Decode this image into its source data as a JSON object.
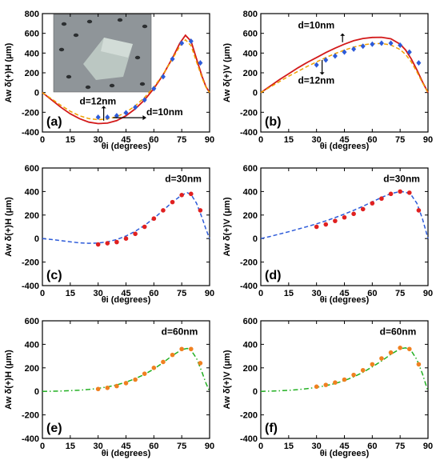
{
  "figure": {
    "xlabel": "θi (degrees)"
  },
  "inset_photo": {
    "colors": {
      "background": "#8f9599",
      "plate": "#c3d0c9",
      "hole": "#2c2f31"
    }
  },
  "chart_data": [
    {
      "panel": "(a)",
      "type": "line",
      "ylabel": "Aw δ(+)H (μm)",
      "xlim": [
        0,
        90
      ],
      "ylim": [
        -400,
        800
      ],
      "xticks": [
        0,
        15,
        30,
        45,
        60,
        75,
        90
      ],
      "yticks": [
        -400,
        -200,
        0,
        200,
        400,
        600,
        800
      ],
      "annotations": [
        "d=12nm",
        "d=10nm"
      ],
      "has_inset": true,
      "series": [
        {
          "style": "solid",
          "color": "#d31a1a",
          "x": [
            0,
            5,
            10,
            15,
            20,
            25,
            30,
            35,
            40,
            45,
            50,
            55,
            60,
            65,
            70,
            74,
            77,
            80,
            83,
            86,
            88,
            90
          ],
          "y": [
            0,
            -75,
            -150,
            -215,
            -265,
            -300,
            -315,
            -310,
            -285,
            -235,
            -165,
            -75,
            40,
            180,
            350,
            500,
            580,
            520,
            340,
            160,
            60,
            0
          ]
        },
        {
          "style": "dash",
          "color": "#f0a000",
          "x": [
            0,
            5,
            10,
            15,
            20,
            25,
            30,
            35,
            40,
            45,
            50,
            55,
            60,
            65,
            70,
            74,
            77,
            80,
            83,
            86,
            88,
            90
          ],
          "y": [
            0,
            -65,
            -130,
            -190,
            -235,
            -265,
            -275,
            -268,
            -245,
            -200,
            -135,
            -50,
            55,
            185,
            340,
            470,
            535,
            475,
            310,
            145,
            55,
            0
          ]
        },
        {
          "style": "markers",
          "color": "#2d5bd9",
          "x": [
            30,
            35,
            40,
            45,
            50,
            55,
            60,
            65,
            70,
            75,
            80,
            85
          ],
          "y": [
            -250,
            -250,
            -235,
            -205,
            -150,
            -75,
            40,
            160,
            340,
            500,
            520,
            300
          ]
        }
      ]
    },
    {
      "panel": "(b)",
      "type": "line",
      "ylabel": "Aw δ(+)V (μm)",
      "xlim": [
        0,
        90
      ],
      "ylim": [
        -400,
        800
      ],
      "xticks": [
        0,
        15,
        30,
        45,
        60,
        75,
        90
      ],
      "yticks": [
        -400,
        -200,
        0,
        200,
        400,
        600,
        800
      ],
      "annotations": [
        "d=10nm",
        "d=12nm"
      ],
      "series": [
        {
          "style": "solid",
          "color": "#d31a1a",
          "x": [
            0,
            5,
            10,
            15,
            20,
            25,
            30,
            35,
            40,
            45,
            50,
            55,
            60,
            65,
            70,
            75,
            78,
            81,
            84,
            87,
            90
          ],
          "y": [
            0,
            65,
            130,
            190,
            250,
            305,
            355,
            405,
            450,
            490,
            525,
            548,
            558,
            560,
            545,
            490,
            430,
            340,
            230,
            110,
            0
          ]
        },
        {
          "style": "dash",
          "color": "#f0a000",
          "x": [
            0,
            5,
            10,
            15,
            20,
            25,
            30,
            35,
            40,
            45,
            50,
            55,
            60,
            65,
            70,
            75,
            78,
            81,
            84,
            87,
            90
          ],
          "y": [
            0,
            55,
            110,
            165,
            215,
            265,
            310,
            355,
            395,
            430,
            460,
            483,
            495,
            497,
            482,
            435,
            385,
            310,
            210,
            100,
            0
          ]
        },
        {
          "style": "markers",
          "color": "#2d5bd9",
          "x": [
            30,
            35,
            40,
            45,
            50,
            55,
            60,
            65,
            70,
            75,
            80,
            85
          ],
          "y": [
            280,
            330,
            370,
            410,
            440,
            470,
            490,
            500,
            500,
            480,
            410,
            300
          ]
        }
      ]
    },
    {
      "panel": "(c)",
      "type": "line",
      "ylabel": "Aw δ(+)H (μm)",
      "xlim": [
        0,
        90
      ],
      "ylim": [
        -400,
        600
      ],
      "xticks": [
        0,
        15,
        30,
        45,
        60,
        75,
        90
      ],
      "yticks": [
        -400,
        -200,
        0,
        200,
        400,
        600
      ],
      "annotations": [
        "d=30nm"
      ],
      "series": [
        {
          "style": "dash",
          "color": "#2d5bd9",
          "x": [
            0,
            5,
            10,
            15,
            20,
            25,
            30,
            35,
            40,
            45,
            50,
            55,
            60,
            65,
            70,
            75,
            78,
            80,
            83,
            86,
            88,
            90
          ],
          "y": [
            0,
            -8,
            -18,
            -28,
            -36,
            -40,
            -38,
            -28,
            -8,
            22,
            62,
            112,
            172,
            240,
            310,
            370,
            390,
            375,
            300,
            175,
            80,
            0
          ]
        },
        {
          "style": "markers",
          "color": "#e02020",
          "x": [
            30,
            35,
            40,
            45,
            50,
            55,
            60,
            65,
            70,
            75,
            80,
            85
          ],
          "y": [
            -50,
            -40,
            -30,
            0,
            40,
            100,
            170,
            240,
            310,
            370,
            380,
            240
          ]
        }
      ]
    },
    {
      "panel": "(d)",
      "type": "line",
      "ylabel": "Aw δ(+)V (μm)",
      "xlim": [
        0,
        90
      ],
      "ylim": [
        -400,
        600
      ],
      "xticks": [
        0,
        15,
        30,
        45,
        60,
        75,
        90
      ],
      "yticks": [
        -400,
        -200,
        0,
        200,
        400,
        600
      ],
      "annotations": [
        "d=30nm"
      ],
      "series": [
        {
          "style": "dash",
          "color": "#2d5bd9",
          "x": [
            0,
            5,
            10,
            15,
            20,
            25,
            30,
            35,
            40,
            45,
            50,
            55,
            60,
            65,
            70,
            75,
            78,
            81,
            84,
            87,
            90
          ],
          "y": [
            0,
            18,
            38,
            58,
            80,
            102,
            125,
            150,
            178,
            208,
            240,
            275,
            312,
            350,
            382,
            400,
            395,
            370,
            300,
            170,
            0
          ]
        },
        {
          "style": "markers",
          "color": "#e02020",
          "x": [
            30,
            35,
            40,
            45,
            50,
            55,
            60,
            65,
            70,
            75,
            80,
            85
          ],
          "y": [
            100,
            120,
            150,
            180,
            210,
            250,
            300,
            340,
            380,
            400,
            390,
            240
          ]
        }
      ]
    },
    {
      "panel": "(e)",
      "type": "line",
      "ylabel": "Aw δ(+)H (μm)",
      "xlim": [
        0,
        90
      ],
      "ylim": [
        -400,
        600
      ],
      "xticks": [
        0,
        15,
        30,
        45,
        60,
        75,
        90
      ],
      "yticks": [
        -400,
        -200,
        0,
        200,
        400,
        600
      ],
      "annotations": [
        "d=60nm"
      ],
      "series": [
        {
          "style": "dashdot",
          "color": "#22b022",
          "x": [
            0,
            5,
            10,
            15,
            20,
            25,
            30,
            35,
            40,
            45,
            50,
            55,
            60,
            65,
            70,
            75,
            78,
            80,
            83,
            86,
            88,
            90
          ],
          "y": [
            0,
            1,
            3,
            6,
            10,
            16,
            25,
            38,
            55,
            78,
            108,
            145,
            190,
            245,
            305,
            355,
            365,
            350,
            280,
            160,
            70,
            0
          ]
        },
        {
          "style": "markers",
          "color": "#f08020",
          "x": [
            30,
            35,
            40,
            45,
            50,
            55,
            60,
            65,
            70,
            75,
            80,
            85
          ],
          "y": [
            20,
            30,
            45,
            70,
            100,
            150,
            200,
            250,
            310,
            360,
            360,
            240
          ]
        }
      ]
    },
    {
      "panel": "(f)",
      "type": "line",
      "ylabel": "Aw δ(+)V (μm)",
      "xlim": [
        0,
        90
      ],
      "ylim": [
        -400,
        600
      ],
      "xticks": [
        0,
        15,
        30,
        45,
        60,
        75,
        90
      ],
      "yticks": [
        -400,
        -200,
        0,
        200,
        400,
        600
      ],
      "annotations": [
        "d=60nm"
      ],
      "series": [
        {
          "style": "dashdot",
          "color": "#22b022",
          "x": [
            0,
            5,
            10,
            15,
            20,
            25,
            30,
            35,
            40,
            45,
            50,
            55,
            60,
            65,
            70,
            75,
            78,
            81,
            84,
            87,
            90
          ],
          "y": [
            0,
            2,
            5,
            9,
            15,
            23,
            34,
            48,
            67,
            92,
            123,
            162,
            208,
            258,
            315,
            362,
            370,
            345,
            270,
            150,
            0
          ]
        },
        {
          "style": "markers",
          "color": "#f08020",
          "x": [
            30,
            35,
            40,
            45,
            50,
            55,
            60,
            65,
            70,
            75,
            80,
            85
          ],
          "y": [
            40,
            55,
            75,
            100,
            140,
            180,
            230,
            280,
            330,
            370,
            360,
            230
          ]
        }
      ]
    }
  ]
}
